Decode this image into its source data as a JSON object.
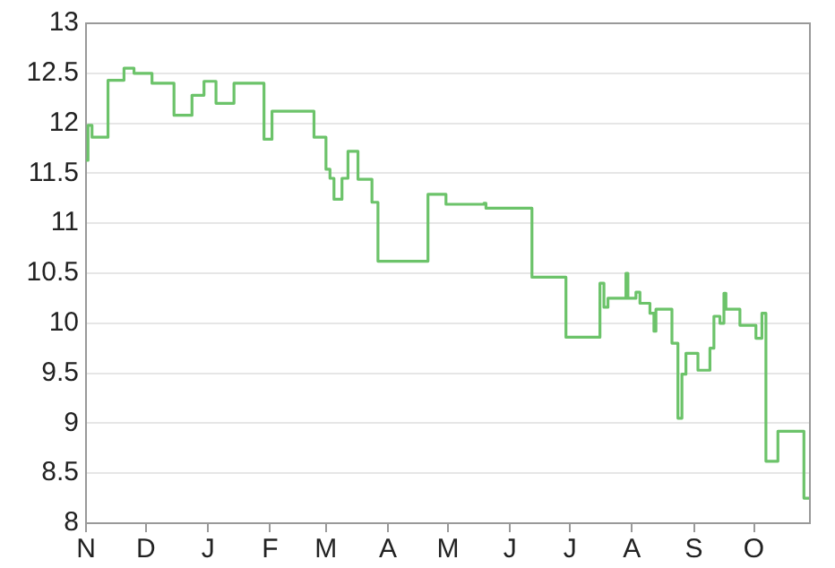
{
  "chart_data": {
    "type": "step",
    "color": "#6cc36a",
    "categories": [
      "N",
      null,
      null,
      null,
      null,
      null,
      null,
      null,
      null,
      null,
      null,
      null,
      null,
      null,
      null,
      null,
      null,
      null,
      null,
      null,
      null,
      null,
      null,
      null,
      null,
      null,
      null,
      null,
      null,
      null,
      "D",
      null,
      null,
      null,
      null,
      null,
      null,
      null,
      null,
      null,
      null,
      null,
      null,
      null,
      null,
      null,
      null,
      null,
      null,
      null,
      null,
      null,
      null,
      null,
      null,
      null,
      null,
      null,
      null,
      null,
      null,
      "J",
      null,
      null,
      null,
      null,
      null,
      null,
      null,
      null,
      null,
      null,
      null,
      null,
      null,
      null,
      null,
      null,
      null,
      null,
      null,
      null,
      null,
      null,
      null,
      null,
      null,
      null,
      null,
      null,
      null,
      null,
      "F",
      null,
      null,
      null,
      null,
      null,
      null,
      null,
      null,
      null,
      null,
      null,
      null,
      null,
      null,
      null,
      null,
      null,
      null,
      null,
      null,
      null,
      null,
      null,
      null,
      null,
      null,
      null,
      "M",
      null,
      null,
      null,
      null,
      null,
      null,
      null,
      null,
      null,
      null,
      null,
      null,
      null,
      null,
      null,
      null,
      null,
      null,
      null,
      null,
      null,
      null,
      null,
      null,
      null,
      null,
      null,
      null,
      null,
      null,
      "A",
      null,
      null,
      null,
      null,
      null,
      null,
      null,
      null,
      null,
      null,
      null,
      null,
      null,
      null,
      null,
      null,
      null,
      null,
      null,
      null,
      null,
      null,
      null,
      null,
      null,
      null,
      null,
      null,
      null,
      "M",
      null,
      null,
      null,
      null,
      null,
      null,
      null,
      null,
      null,
      null,
      null,
      null,
      null,
      null,
      null,
      null,
      null,
      null,
      null,
      null,
      null,
      null,
      null,
      null,
      null,
      null,
      null,
      null,
      null,
      null,
      "J",
      null,
      null,
      null,
      null,
      null,
      null,
      null,
      null,
      null,
      null,
      null,
      null,
      null,
      null,
      null,
      null,
      null,
      null,
      null,
      null,
      null,
      null,
      null,
      null,
      null,
      null,
      null,
      null,
      null,
      "J",
      null,
      null,
      null,
      null,
      null,
      null,
      null,
      null,
      null,
      null,
      null,
      null,
      null,
      null,
      null,
      null,
      null,
      null,
      null,
      null,
      null,
      null,
      null,
      null,
      null,
      null,
      null,
      null,
      null,
      null,
      "A",
      null,
      null,
      null,
      null,
      null,
      null,
      null,
      null,
      null,
      null,
      null,
      null,
      null,
      null,
      null,
      null,
      null,
      null,
      null,
      null,
      null,
      null,
      null,
      null,
      null,
      null,
      null,
      null,
      null,
      null,
      "S",
      null,
      null,
      null,
      null,
      null,
      null,
      null,
      null,
      null,
      null,
      null,
      null,
      null,
      null,
      null,
      null,
      null,
      null,
      null,
      null,
      null,
      null,
      null,
      null,
      null,
      null,
      null,
      null,
      null,
      "O",
      null,
      null,
      null,
      null,
      null,
      null,
      null,
      null,
      null,
      null,
      null,
      null,
      null,
      null,
      null,
      null,
      null,
      null,
      null,
      null,
      null,
      null,
      null,
      null,
      null,
      null,
      null,
      null
    ],
    "values": [
      11.63,
      11.98,
      11.98,
      11.86,
      11.86,
      11.86,
      11.86,
      11.86,
      11.86,
      11.86,
      11.86,
      12.43,
      12.43,
      12.43,
      12.43,
      12.43,
      12.43,
      12.43,
      12.43,
      12.55,
      12.55,
      12.55,
      12.55,
      12.55,
      12.5,
      12.5,
      12.5,
      12.5,
      12.5,
      12.5,
      12.5,
      12.5,
      12.5,
      12.4,
      12.4,
      12.4,
      12.4,
      12.4,
      12.4,
      12.4,
      12.4,
      12.4,
      12.4,
      12.4,
      12.08,
      12.08,
      12.08,
      12.08,
      12.08,
      12.08,
      12.08,
      12.08,
      12.08,
      12.28,
      12.28,
      12.28,
      12.28,
      12.28,
      12.28,
      12.42,
      12.42,
      12.42,
      12.42,
      12.42,
      12.42,
      12.2,
      12.2,
      12.2,
      12.2,
      12.2,
      12.2,
      12.2,
      12.2,
      12.2,
      12.4,
      12.4,
      12.4,
      12.4,
      12.4,
      12.4,
      12.4,
      12.4,
      12.4,
      12.4,
      12.4,
      12.4,
      12.4,
      12.4,
      12.4,
      11.84,
      11.84,
      11.84,
      11.84,
      12.12,
      12.12,
      12.12,
      12.12,
      12.12,
      12.12,
      12.12,
      12.12,
      12.12,
      12.12,
      12.12,
      12.12,
      12.12,
      12.12,
      12.12,
      12.12,
      12.12,
      12.12,
      12.12,
      12.12,
      12.12,
      11.86,
      11.86,
      11.86,
      11.86,
      11.86,
      11.86,
      11.54,
      11.54,
      11.45,
      11.45,
      11.24,
      11.24,
      11.24,
      11.24,
      11.45,
      11.45,
      11.45,
      11.72,
      11.72,
      11.72,
      11.72,
      11.72,
      11.44,
      11.44,
      11.44,
      11.44,
      11.44,
      11.44,
      11.44,
      11.21,
      11.21,
      11.21,
      10.62,
      10.62,
      10.62,
      10.62,
      10.62,
      10.62,
      10.62,
      10.62,
      10.62,
      10.62,
      10.62,
      10.62,
      10.62,
      10.62,
      10.62,
      10.62,
      10.62,
      10.62,
      10.62,
      10.62,
      10.62,
      10.62,
      10.62,
      10.62,
      10.62,
      11.29,
      11.29,
      11.29,
      11.29,
      11.29,
      11.29,
      11.29,
      11.29,
      11.29,
      11.19,
      11.19,
      11.19,
      11.19,
      11.19,
      11.19,
      11.19,
      11.19,
      11.19,
      11.19,
      11.19,
      11.19,
      11.19,
      11.19,
      11.19,
      11.19,
      11.19,
      11.19,
      11.19,
      11.2,
      11.15,
      11.15,
      11.15,
      11.15,
      11.15,
      11.15,
      11.15,
      11.15,
      11.15,
      11.15,
      11.15,
      11.15,
      11.15,
      11.15,
      11.15,
      11.15,
      11.15,
      11.15,
      11.15,
      11.15,
      11.15,
      11.15,
      11.15,
      10.46,
      10.46,
      10.46,
      10.46,
      10.46,
      10.46,
      10.46,
      10.46,
      10.46,
      10.46,
      10.46,
      10.46,
      10.46,
      10.46,
      10.46,
      10.46,
      10.46,
      9.86,
      9.86,
      9.86,
      9.86,
      9.86,
      9.86,
      9.86,
      9.86,
      9.86,
      9.86,
      9.86,
      9.86,
      9.86,
      9.86,
      9.86,
      9.86,
      9.86,
      10.4,
      10.4,
      10.16,
      10.16,
      10.25,
      10.25,
      10.25,
      10.25,
      10.25,
      10.25,
      10.25,
      10.25,
      10.25,
      10.5,
      10.25,
      10.25,
      10.25,
      10.25,
      10.31,
      10.31,
      10.2,
      10.2,
      10.2,
      10.2,
      10.2,
      10.1,
      10.1,
      9.92,
      10.14,
      10.14,
      10.14,
      10.14,
      10.14,
      10.14,
      10.14,
      10.14,
      9.8,
      9.8,
      9.8,
      9.05,
      9.05,
      9.49,
      9.49,
      9.7,
      9.7,
      9.7,
      9.7,
      9.7,
      9.7,
      9.53,
      9.53,
      9.53,
      9.53,
      9.53,
      9.53,
      9.75,
      9.75,
      10.07,
      10.07,
      10.07,
      10.0,
      10.0,
      10.3,
      10.14,
      10.14,
      10.14,
      10.14,
      10.14,
      10.14,
      10.14,
      9.98,
      9.98,
      9.98,
      9.98,
      9.98,
      9.98,
      9.98,
      9.98,
      9.85,
      9.85,
      9.85,
      10.1,
      10.1,
      8.62,
      8.62,
      8.62,
      8.62,
      8.62,
      8.62,
      8.92,
      8.92,
      8.92,
      8.92,
      8.92,
      8.92,
      8.92,
      8.92,
      8.92,
      8.92,
      8.92,
      8.92,
      8.92,
      8.25,
      8.25,
      8.25,
      8.25
    ],
    "ylim": [
      8,
      13
    ],
    "yticks": [
      8,
      8.5,
      9,
      9.5,
      10,
      10.5,
      11,
      11.5,
      12,
      12.5,
      13
    ],
    "grid": "y",
    "legend": false
  }
}
